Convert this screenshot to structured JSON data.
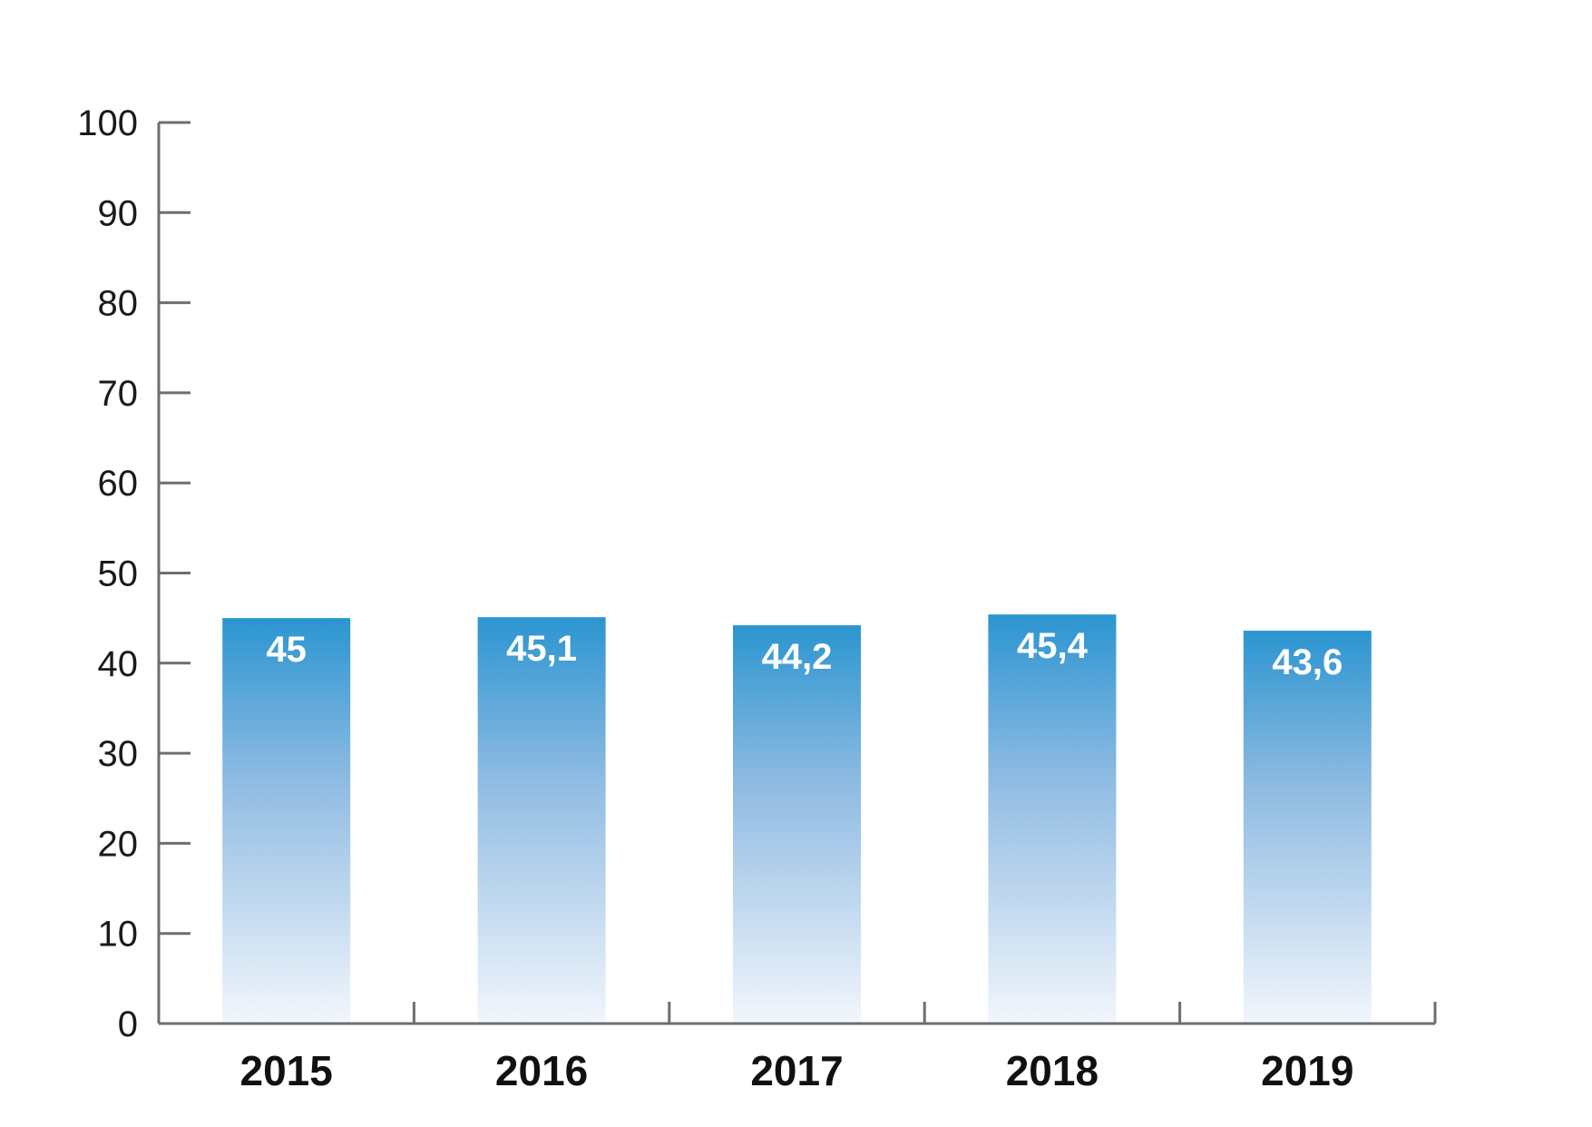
{
  "chart_data": {
    "type": "bar",
    "categories": [
      "2015",
      "2016",
      "2017",
      "2018",
      "2019"
    ],
    "values": [
      45,
      45.1,
      44.2,
      45.4,
      43.6
    ],
    "value_labels": [
      "45",
      "45,1",
      "44,2",
      "45,4",
      "43,6"
    ],
    "title": "",
    "xlabel": "",
    "ylabel": "",
    "ylim": [
      0,
      100
    ],
    "yticks": [
      0,
      10,
      20,
      30,
      40,
      50,
      60,
      70,
      80,
      90,
      100
    ],
    "ytick_labels": [
      "0",
      "10",
      "20",
      "30",
      "40",
      "50",
      "60",
      "70",
      "80",
      "90",
      "100"
    ],
    "grid": false,
    "legend": "none",
    "colors": {
      "bar_top": "#2b95d0",
      "bar_mid": "#8fbbe2",
      "bar_bottom": "#f2f6fc",
      "axis": "#6d6e71",
      "bar_label": "#ffffff",
      "tick_label": "#111111"
    }
  }
}
